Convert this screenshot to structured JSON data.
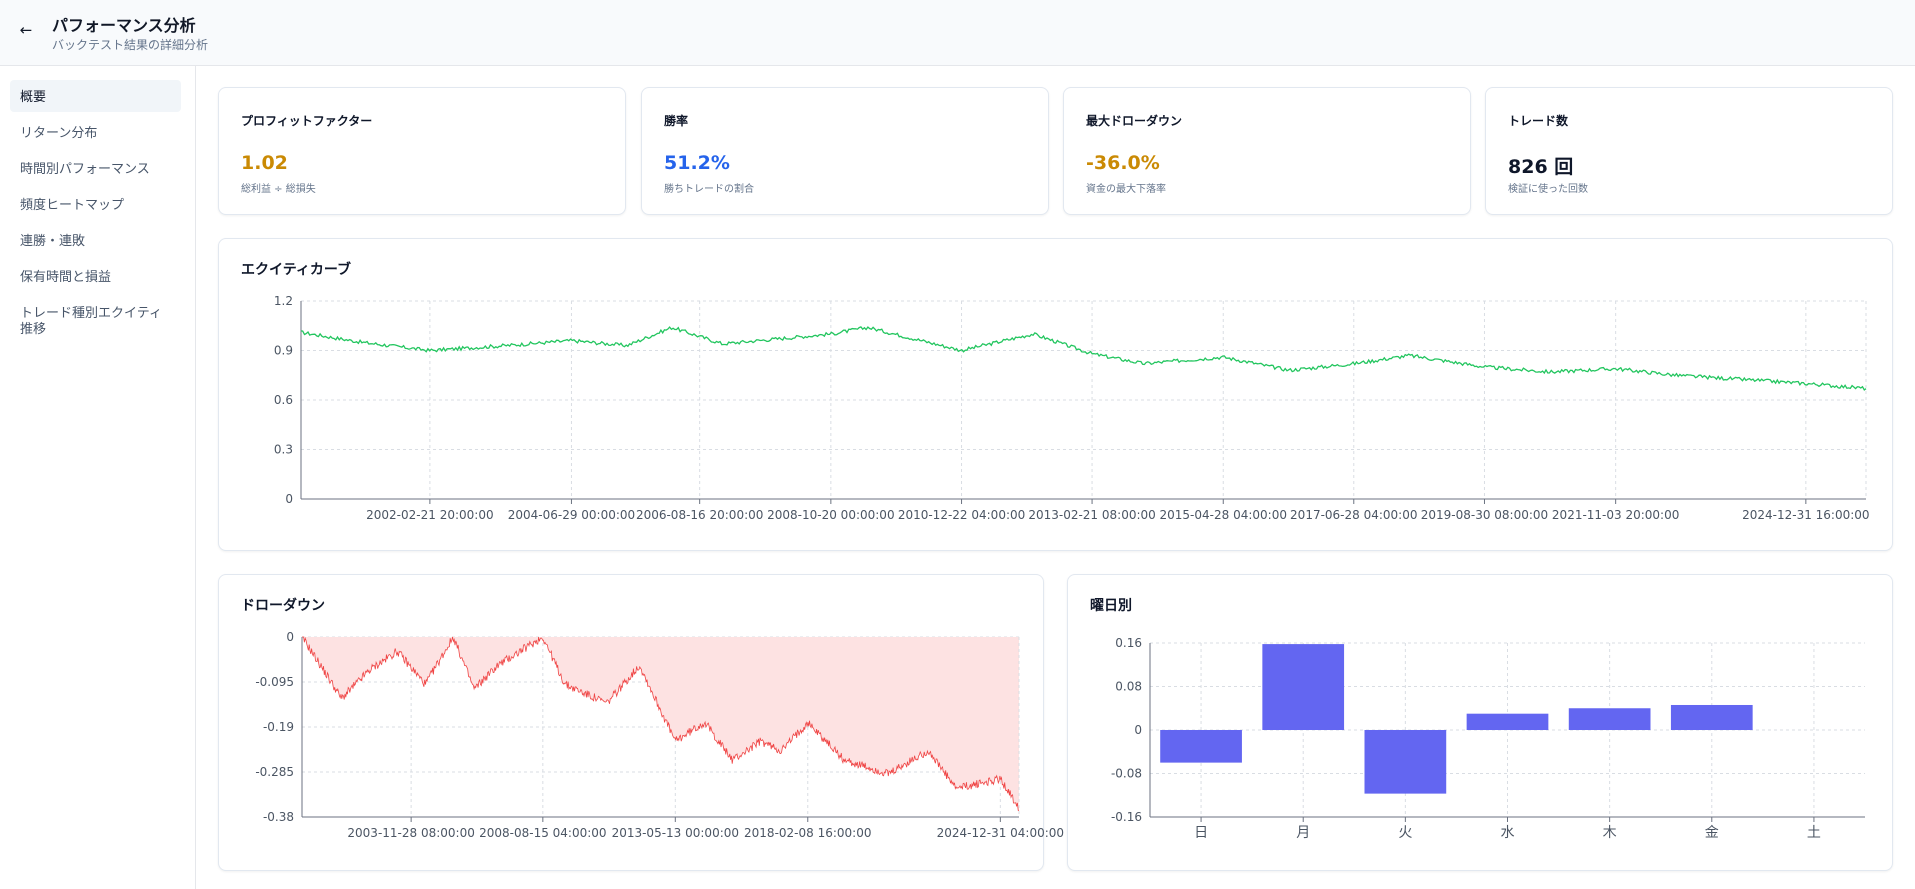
{
  "header": {
    "title": "パフォーマンス分析",
    "subtitle": "バックテスト結果の詳細分析",
    "back_icon": "arrow-left-icon"
  },
  "sidebar": {
    "items": [
      {
        "label": "概要",
        "active": true
      },
      {
        "label": "リターン分布"
      },
      {
        "label": "時間別パフォーマンス"
      },
      {
        "label": "頻度ヒートマップ"
      },
      {
        "label": "連勝・連敗"
      },
      {
        "label": "保有時間と損益"
      },
      {
        "label": "トレード種別エクイティ推移"
      }
    ]
  },
  "kpis": [
    {
      "title": "プロフィットファクター",
      "value": "1.02",
      "desc": "総利益 ÷ 総損失",
      "color": "#ca8a04"
    },
    {
      "title": "勝率",
      "value": "51.2%",
      "desc": "勝ちトレードの割合",
      "color": "#2563eb"
    },
    {
      "title": "最大ドローダウン",
      "value": "-36.0%",
      "desc": "資金の最大下落率",
      "color": "#ca8a04"
    },
    {
      "title": "トレード数",
      "value": "826 回",
      "desc": "検証に使った回数",
      "color": "#0f172a"
    }
  ],
  "chart_data": [
    {
      "type": "line",
      "title": "エクイティカーブ",
      "color": "#22c55e",
      "ylim": [
        0,
        1.2
      ],
      "yticks": [
        "0",
        "0.3",
        "0.6",
        "0.9",
        "1.2"
      ],
      "xticks": [
        "2002-02-21 20:00:00",
        "2004-06-29 00:00:00",
        "2006-08-16 20:00:00",
        "2008-10-20 00:00:00",
        "2010-12-22 04:00:00",
        "2013-02-21 08:00:00",
        "2015-04-28 04:00:00",
        "2017-06-28 04:00:00",
        "2019-08-30 08:00:00",
        "2021-11-03 20:00:00",
        "2024-12-31 16:00:00"
      ],
      "grid": true,
      "points": [
        {
          "x": "2000-01-01",
          "y": 1.01
        },
        {
          "x": "2001-01-01",
          "y": 0.95
        },
        {
          "x": "2002-02-21",
          "y": 0.9
        },
        {
          "x": "2003-06-01",
          "y": 0.93
        },
        {
          "x": "2004-06-29",
          "y": 0.96
        },
        {
          "x": "2005-06-01",
          "y": 0.93
        },
        {
          "x": "2006-03-01",
          "y": 1.04
        },
        {
          "x": "2007-01-01",
          "y": 0.94
        },
        {
          "x": "2008-10-20",
          "y": 1.0
        },
        {
          "x": "2009-06-01",
          "y": 1.04
        },
        {
          "x": "2010-12-22",
          "y": 0.9
        },
        {
          "x": "2012-03-01",
          "y": 1.0
        },
        {
          "x": "2013-02-21",
          "y": 0.88
        },
        {
          "x": "2014-01-01",
          "y": 0.82
        },
        {
          "x": "2015-04-28",
          "y": 0.86
        },
        {
          "x": "2016-06-01",
          "y": 0.78
        },
        {
          "x": "2017-06-28",
          "y": 0.82
        },
        {
          "x": "2018-06-01",
          "y": 0.87
        },
        {
          "x": "2019-08-30",
          "y": 0.8
        },
        {
          "x": "2020-10-01",
          "y": 0.77
        },
        {
          "x": "2021-11-03",
          "y": 0.79
        },
        {
          "x": "2022-11-01",
          "y": 0.75
        },
        {
          "x": "2024-12-31",
          "y": 0.7
        },
        {
          "x": "2025-12-31",
          "y": 0.67
        }
      ]
    },
    {
      "type": "area",
      "title": "ドローダウン",
      "color": "#ef4444",
      "fill": "#fde2e2",
      "ylim": [
        -0.38,
        0
      ],
      "yticks": [
        "0",
        "-0.095",
        "-0.19",
        "-0.285",
        "-0.38"
      ],
      "xticks": [
        "2003-11-28 08:00:00",
        "2008-08-15 04:00:00",
        "2013-05-13 00:00:00",
        "2018-02-08 16:00:00",
        "2024-12-31 04:00:00"
      ],
      "grid": true,
      "points": [
        {
          "x": "2000-01-01",
          "y": 0
        },
        {
          "x": "2000-09-01",
          "y": -0.06
        },
        {
          "x": "2001-06-01",
          "y": -0.13
        },
        {
          "x": "2002-06-01",
          "y": -0.07
        },
        {
          "x": "2003-06-01",
          "y": -0.03
        },
        {
          "x": "2004-06-01",
          "y": -0.1
        },
        {
          "x": "2005-06-01",
          "y": 0
        },
        {
          "x": "2006-03-01",
          "y": -0.11
        },
        {
          "x": "2007-01-01",
          "y": -0.06
        },
        {
          "x": "2008-08-15",
          "y": 0
        },
        {
          "x": "2009-06-01",
          "y": -0.1
        },
        {
          "x": "2010-12-01",
          "y": -0.14
        },
        {
          "x": "2012-02-01",
          "y": -0.06
        },
        {
          "x": "2013-05-13",
          "y": -0.22
        },
        {
          "x": "2014-06-01",
          "y": -0.18
        },
        {
          "x": "2015-06-01",
          "y": -0.26
        },
        {
          "x": "2016-06-01",
          "y": -0.22
        },
        {
          "x": "2017-03-01",
          "y": -0.24
        },
        {
          "x": "2018-02-08",
          "y": -0.18
        },
        {
          "x": "2019-06-01",
          "y": -0.26
        },
        {
          "x": "2021-01-01",
          "y": -0.29
        },
        {
          "x": "2022-06-01",
          "y": -0.24
        },
        {
          "x": "2023-06-01",
          "y": -0.32
        },
        {
          "x": "2024-12-31",
          "y": -0.3
        },
        {
          "x": "2025-09-01",
          "y": -0.36
        }
      ]
    },
    {
      "type": "bar",
      "title": "曜日別",
      "color": "#6366f1",
      "ylim": [
        -0.16,
        0.16
      ],
      "yticks": [
        "0.16",
        "0.08",
        "0",
        "-0.08",
        "-0.16"
      ],
      "categories": [
        "日",
        "月",
        "火",
        "水",
        "木",
        "金",
        "土"
      ],
      "values": [
        -0.06,
        0.158,
        -0.117,
        0.03,
        0.04,
        0.046,
        0
      ],
      "grid": true
    }
  ]
}
